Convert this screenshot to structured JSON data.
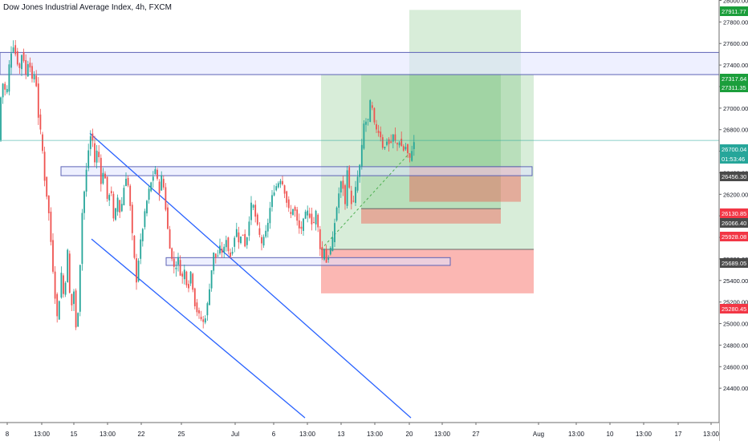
{
  "header": {
    "title": "Dow Jones Industrial Average Index, 4h, FXCM"
  },
  "colors": {
    "up": "#26a69a",
    "down": "#ef5350",
    "channel": "#2962ff",
    "zone_fill": "#e0e3ff",
    "zone_border": "#5d63b6",
    "profit": "#4caf50",
    "loss": "#f44336",
    "neutral_box": "#9e9e5a",
    "price_line": "#26a69a"
  },
  "chart_data": {
    "type": "candlestick",
    "instrument": "Dow Jones Industrial Average Index",
    "interval": "4h",
    "source": "FXCM",
    "ylim": [
      24200,
      28050
    ],
    "y_ticks": [
      24400,
      24600,
      24800,
      25000,
      25200,
      25400,
      25600,
      25800,
      26000,
      26200,
      26400,
      26600,
      26800,
      27000,
      27200,
      27400,
      27600,
      27800,
      28000
    ],
    "x_ticks": [
      "8",
      "13:00",
      "15",
      "13:00",
      "22",
      "25",
      "Jul",
      "6",
      "13:00",
      "13",
      "13:00",
      "20",
      "13:00",
      "27",
      "Aug",
      "13:00",
      "10",
      "13:00",
      "17",
      "13:00"
    ],
    "price_labels": [
      {
        "value": "27911.77",
        "kind": "profit"
      },
      {
        "value": "27317.64",
        "kind": "profit"
      },
      {
        "value": "27311.35",
        "kind": "profit"
      },
      {
        "value": "26700.04",
        "kind": "last"
      },
      {
        "value": "01:53:46",
        "kind": "countdown"
      },
      {
        "value": "26456.30",
        "kind": "level"
      },
      {
        "value": "26130.85",
        "kind": "loss"
      },
      {
        "value": "26066.40",
        "kind": "level"
      },
      {
        "value": "25928.08",
        "kind": "loss"
      },
      {
        "value": "25689.05",
        "kind": "level"
      },
      {
        "value": "25280.45",
        "kind": "loss"
      }
    ],
    "close_path": [
      [
        0,
        27050
      ],
      [
        4,
        27250
      ],
      [
        8,
        27100
      ],
      [
        12,
        27450
      ],
      [
        16,
        27600
      ],
      [
        20,
        27480
      ],
      [
        24,
        27350
      ],
      [
        28,
        27550
      ],
      [
        32,
        27300
      ],
      [
        36,
        27480
      ],
      [
        40,
        27250
      ],
      [
        44,
        27350
      ],
      [
        48,
        26900
      ],
      [
        52,
        26700
      ],
      [
        56,
        26300
      ],
      [
        60,
        26100
      ],
      [
        64,
        25700
      ],
      [
        68,
        25300
      ],
      [
        72,
        25000
      ],
      [
        76,
        25500
      ],
      [
        80,
        25200
      ],
      [
        84,
        25700
      ],
      [
        88,
        25100
      ],
      [
        92,
        25300
      ],
      [
        95,
        24900
      ],
      [
        98,
        25200
      ],
      [
        102,
        26000
      ],
      [
        106,
        26300
      ],
      [
        110,
        26600
      ],
      [
        114,
        26800
      ],
      [
        118,
        26500
      ],
      [
        122,
        26650
      ],
      [
        126,
        26300
      ],
      [
        130,
        26450
      ],
      [
        134,
        26100
      ],
      [
        138,
        26300
      ],
      [
        142,
        25900
      ],
      [
        146,
        26200
      ],
      [
        150,
        26000
      ],
      [
        154,
        26250
      ],
      [
        158,
        26400
      ],
      [
        162,
        26100
      ],
      [
        166,
        25700
      ],
      [
        170,
        25400
      ],
      [
        174,
        25700
      ],
      [
        178,
        25900
      ],
      [
        182,
        26100
      ],
      [
        186,
        26250
      ],
      [
        190,
        26350
      ],
      [
        194,
        26450
      ],
      [
        198,
        26200
      ],
      [
        202,
        26400
      ],
      [
        206,
        26100
      ],
      [
        210,
        25800
      ],
      [
        214,
        25600
      ],
      [
        218,
        25500
      ],
      [
        222,
        25600
      ],
      [
        226,
        25400
      ],
      [
        230,
        25500
      ],
      [
        234,
        25300
      ],
      [
        238,
        25500
      ],
      [
        242,
        25200
      ],
      [
        246,
        25100
      ],
      [
        250,
        25050
      ],
      [
        254,
        25000
      ],
      [
        258,
        25150
      ],
      [
        262,
        25400
      ],
      [
        266,
        25650
      ],
      [
        270,
        25600
      ],
      [
        274,
        25700
      ],
      [
        278,
        25650
      ],
      [
        282,
        25800
      ],
      [
        286,
        25600
      ],
      [
        290,
        25700
      ],
      [
        294,
        25900
      ],
      [
        298,
        25750
      ],
      [
        302,
        25850
      ],
      [
        306,
        25700
      ],
      [
        310,
        25950
      ],
      [
        314,
        26150
      ],
      [
        318,
        26000
      ],
      [
        322,
        25850
      ],
      [
        326,
        25750
      ],
      [
        330,
        25800
      ],
      [
        334,
        25950
      ],
      [
        338,
        26150
      ],
      [
        342,
        26250
      ],
      [
        346,
        26300
      ],
      [
        350,
        26350
      ],
      [
        354,
        26250
      ],
      [
        358,
        26100
      ],
      [
        362,
        26000
      ],
      [
        366,
        26100
      ],
      [
        370,
        25950
      ],
      [
        374,
        25850
      ],
      [
        378,
        25950
      ],
      [
        382,
        26050
      ],
      [
        386,
        26000
      ],
      [
        390,
        25900
      ],
      [
        394,
        26050
      ],
      [
        398,
        25750
      ],
      [
        401,
        25600
      ],
      [
        404,
        25700
      ],
      [
        407,
        25550
      ],
      [
        410,
        25650
      ],
      [
        414,
        25750
      ],
      [
        418,
        26000
      ],
      [
        422,
        26200
      ],
      [
        426,
        26350
      ],
      [
        430,
        26100
      ],
      [
        433,
        26500
      ],
      [
        436,
        26150
      ],
      [
        440,
        26100
      ],
      [
        444,
        26300
      ],
      [
        448,
        26450
      ],
      [
        451,
        26650
      ],
      [
        454,
        26900
      ],
      [
        458,
        26850
      ],
      [
        462,
        27100
      ],
      [
        466,
        26850
      ],
      [
        470,
        26800
      ],
      [
        474,
        26750
      ],
      [
        478,
        26600
      ],
      [
        482,
        26700
      ],
      [
        486,
        26650
      ],
      [
        490,
        26750
      ],
      [
        494,
        26650
      ],
      [
        498,
        26700
      ],
      [
        502,
        26600
      ],
      [
        506,
        26650
      ],
      [
        510,
        26500
      ],
      [
        514,
        26650
      ],
      [
        518,
        26700
      ]
    ],
    "zones": [
      {
        "name": "supply-zone",
        "x": [
          0,
          896
        ],
        "y": [
          27311.35,
          27517
        ]
      },
      {
        "name": "resistance-zone",
        "x": [
          76,
          663
        ],
        "y": [
          26373,
          26456.3
        ]
      },
      {
        "name": "support-zone",
        "x": [
          207,
          561
        ],
        "y": [
          25540,
          25612
        ]
      }
    ],
    "channel": [
      {
        "from": [
          112,
          26765
        ],
        "to": [
          512,
          24125
        ]
      },
      {
        "from": [
          114,
          25785
        ],
        "to": [
          380,
          24125
        ]
      }
    ],
    "positions": [
      {
        "name": "long-position-1",
        "x": [
          400,
          665
        ],
        "entry": 25689.05,
        "target": 27311.35,
        "stop": 25280.45
      },
      {
        "name": "long-position-2",
        "x": [
          450,
          624
        ],
        "entry": 26066.4,
        "target": 27317.64,
        "stop": 25928.08
      },
      {
        "name": "long-position-3",
        "x": [
          510,
          649
        ],
        "entry": 26456.3,
        "target": 27911.77,
        "stop": 26130.85
      }
    ],
    "projection": {
      "from": [
        400,
        25689.05
      ],
      "to": [
        510,
        26580
      ]
    },
    "last_price": 26700.04
  }
}
